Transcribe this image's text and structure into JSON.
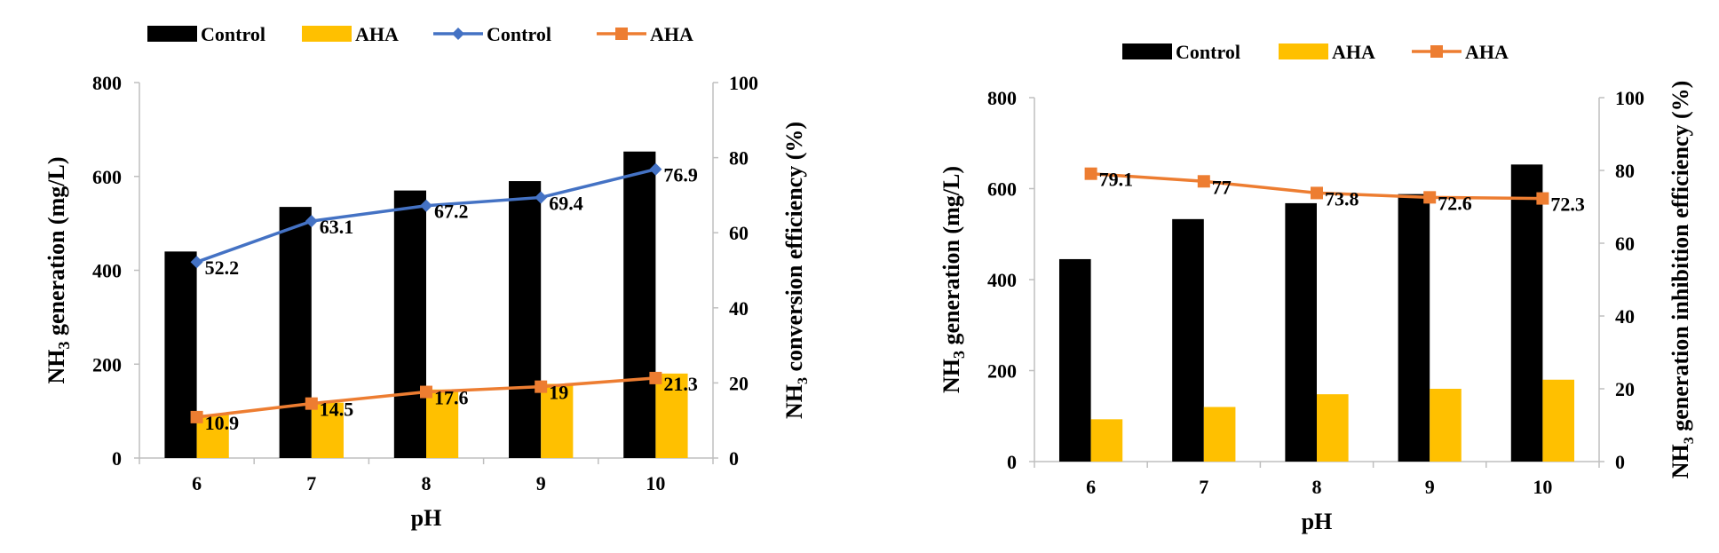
{
  "colors": {
    "control_bar": "#000000",
    "aha_bar": "#FFC000",
    "control_line": "#4472C4",
    "aha_line": "#ED7D31"
  },
  "chart_data": [
    {
      "type": "bar",
      "categories": [
        "6",
        "7",
        "8",
        "9",
        "10"
      ],
      "xlabel": "pH",
      "ylabel_main": "NH",
      "ylabel_sub": "3",
      "ylabel_rest": " generation (mg/L)",
      "y2label_main": "NH",
      "y2label_sub": "3",
      "y2label_rest": " conversion efficiency (%)",
      "ylim": [
        0,
        800
      ],
      "y_ticks": [
        "0",
        "200",
        "400",
        "600",
        "800"
      ],
      "y2lim": [
        0,
        100
      ],
      "y2_ticks": [
        "0",
        "20",
        "40",
        "60",
        "80",
        "100"
      ],
      "legend_position": "top",
      "series": [
        {
          "name": "Control",
          "kind": "bar",
          "axis": "left",
          "values": [
            440,
            535,
            570,
            590,
            653
          ]
        },
        {
          "name": "AHA",
          "kind": "bar",
          "axis": "left",
          "values": [
            92,
            118,
            146,
            158,
            180
          ]
        },
        {
          "name": "Control",
          "kind": "line",
          "axis": "right",
          "marker": "diamond",
          "values": [
            52.2,
            63.1,
            67.2,
            69.4,
            76.9
          ],
          "labels": [
            "52.2",
            "63.1",
            "67.2",
            "69.4",
            "76.9"
          ]
        },
        {
          "name": "AHA",
          "kind": "line",
          "axis": "right",
          "marker": "square",
          "values": [
            10.9,
            14.5,
            17.6,
            19,
            21.3
          ],
          "labels": [
            "10.9",
            "14.5",
            "17.6",
            "19",
            "21.3"
          ]
        }
      ]
    },
    {
      "type": "bar",
      "categories": [
        "6",
        "7",
        "8",
        "9",
        "10"
      ],
      "xlabel": "pH",
      "ylabel_main": "NH",
      "ylabel_sub": "3",
      "ylabel_rest": " generation (mg/L)",
      "y2label_main": "NH",
      "y2label_sub": "3",
      "y2label_rest": " generation inhibition efficiency (%)",
      "ylim": [
        0,
        800
      ],
      "y_ticks": [
        "0",
        "200",
        "400",
        "600",
        "800"
      ],
      "y2lim": [
        0,
        100
      ],
      "y2_ticks": [
        "0",
        "20",
        "40",
        "60",
        "80",
        "100"
      ],
      "legend_position": "top",
      "series": [
        {
          "name": "Control",
          "kind": "bar",
          "axis": "left",
          "values": [
            445,
            533,
            568,
            588,
            653
          ]
        },
        {
          "name": "AHA",
          "kind": "bar",
          "axis": "left",
          "values": [
            93,
            120,
            148,
            160,
            180
          ]
        },
        {
          "name": "AHA",
          "kind": "line",
          "axis": "right",
          "marker": "square",
          "values": [
            79.1,
            77,
            73.8,
            72.6,
            72.3
          ],
          "labels": [
            "79.1",
            "77",
            "73.8",
            "72.6",
            "72.3"
          ]
        }
      ]
    }
  ]
}
